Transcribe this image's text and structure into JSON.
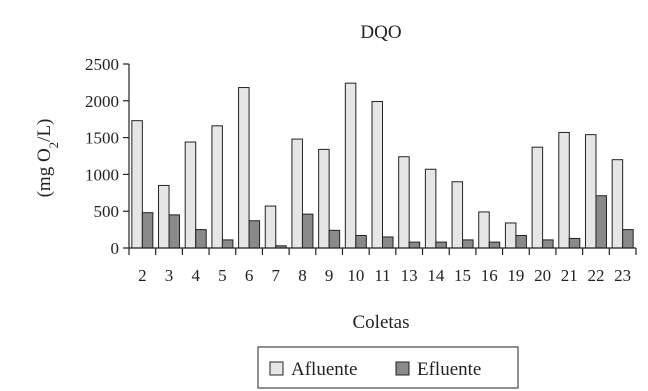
{
  "chart_data": {
    "type": "bar",
    "title": "DQO",
    "xlabel": "Coletas",
    "ylabel": "(mg O",
    "ylabel_subscript": "2",
    "ylabel_suffix": "/L)",
    "ylim": [
      0,
      2500
    ],
    "yticks": [
      0,
      500,
      1000,
      1500,
      2000,
      2500
    ],
    "grid": false,
    "legend_position": "bottom",
    "categories": [
      "2",
      "3",
      "4",
      "5",
      "6",
      "7",
      "8",
      "9",
      "10",
      "11",
      "13",
      "14",
      "15",
      "16",
      "19",
      "20",
      "21",
      "22",
      "23"
    ],
    "series": [
      {
        "name": "Afluente",
        "color": "#e6e6e6",
        "values": [
          1730,
          850,
          1440,
          1660,
          2180,
          570,
          1480,
          1340,
          2240,
          1990,
          1240,
          1070,
          900,
          490,
          340,
          1370,
          1570,
          1540,
          1200
        ]
      },
      {
        "name": "Efluente",
        "color": "#8a8a8a",
        "values": [
          480,
          450,
          250,
          110,
          370,
          30,
          460,
          240,
          170,
          150,
          80,
          80,
          110,
          80,
          170,
          110,
          130,
          710,
          250
        ]
      }
    ]
  }
}
